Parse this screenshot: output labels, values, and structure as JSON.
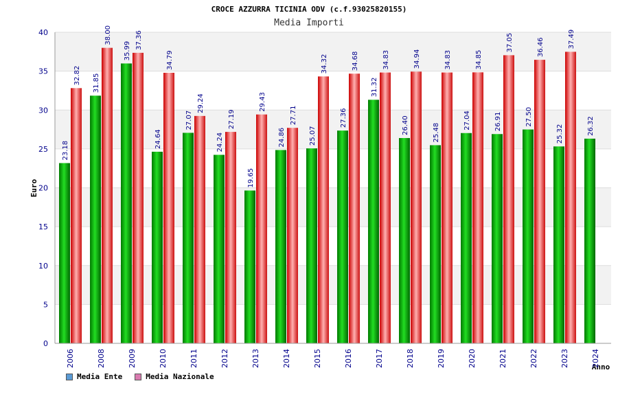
{
  "chart_data": {
    "type": "bar",
    "title": "CROCE AZZURRA TICINIA ODV (c.f.93025820155)",
    "subtitle": "Media Importi",
    "ylabel": "Euro",
    "xlabel": "Anno",
    "ylim": [
      0,
      40
    ],
    "yticks": [
      0,
      5,
      10,
      15,
      20,
      25,
      30,
      35,
      40
    ],
    "grid": true,
    "legend_position": "bottom-left",
    "categories": [
      "2006",
      "2008",
      "2009",
      "2010",
      "2011",
      "2012",
      "2013",
      "2014",
      "2015",
      "2016",
      "2017",
      "2018",
      "2019",
      "2020",
      "2021",
      "2022",
      "2023",
      "2024"
    ],
    "series": [
      {
        "name": "Media Ente",
        "color": "#00aa00",
        "legend_color": "#5b9bd5",
        "values": [
          23.18,
          31.85,
          35.99,
          24.64,
          27.07,
          24.24,
          19.65,
          24.86,
          25.07,
          27.36,
          31.32,
          26.4,
          25.48,
          27.04,
          26.91,
          27.5,
          25.32,
          26.32
        ],
        "labels": [
          "23.18",
          "31.85",
          "35.99",
          "24.64",
          "27.07",
          "24.24",
          "19.65",
          "24.86",
          "25.07",
          "27.36",
          "31.32",
          "26.40",
          "25.48",
          "27.04",
          "26.91",
          "27.50",
          "25.32",
          "26.32"
        ]
      },
      {
        "name": "Media Nazionale",
        "color": "#ee2222",
        "legend_color": "#d97bb0",
        "values": [
          32.82,
          38.0,
          37.36,
          34.79,
          29.24,
          27.19,
          29.43,
          27.71,
          34.32,
          34.68,
          34.83,
          34.94,
          34.83,
          34.85,
          37.05,
          36.46,
          37.49,
          null
        ],
        "labels": [
          "32.82",
          "38.00",
          "37.36",
          "34.79",
          "29.24",
          "27.19",
          "29.43",
          "27.71",
          "34.32",
          "34.68",
          "34.83",
          "34.94",
          "34.83",
          "34.85",
          "37.05",
          "36.46",
          "37.49",
          ""
        ]
      }
    ]
  }
}
